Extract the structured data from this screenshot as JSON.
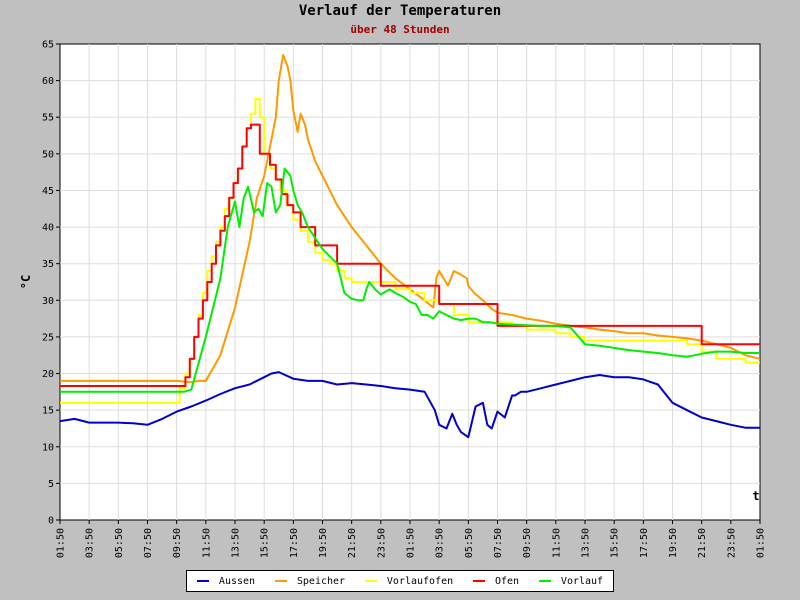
{
  "chart_data": {
    "type": "line",
    "title": "Verlauf der Temperaturen",
    "subtitle": "über 48 Stunden",
    "xlabel": "t",
    "ylabel": "°C",
    "ylim": [
      0,
      65
    ],
    "yticks": [
      0,
      5,
      10,
      15,
      20,
      25,
      30,
      35,
      40,
      45,
      50,
      55,
      60,
      65
    ],
    "xlim": [
      0,
      48
    ],
    "grid": true,
    "legend_position": "bottom",
    "x_tick_labels": [
      "01:50",
      "03:50",
      "05:50",
      "07:50",
      "09:50",
      "11:50",
      "13:50",
      "15:50",
      "17:50",
      "19:50",
      "21:50",
      "23:50",
      "01:50",
      "03:50",
      "05:50",
      "07:50",
      "09:50",
      "11:50",
      "13:50",
      "15:50",
      "17:50",
      "19:50",
      "21:50",
      "23:50",
      "01:50"
    ],
    "series": [
      {
        "name": "Aussen",
        "color": "#0000cc",
        "step": false,
        "x": [
          0,
          1,
          2,
          4,
          5,
          6,
          7,
          8,
          9,
          10,
          11,
          12,
          13,
          14,
          14.5,
          15,
          16,
          17,
          18,
          19,
          20,
          21,
          22,
          23,
          24,
          25,
          25.7,
          26,
          26.5,
          26.9,
          27.2,
          27.5,
          28,
          28.5,
          29,
          29.3,
          29.6,
          30,
          30.5,
          31,
          31.2,
          31.6,
          32,
          33,
          34,
          35,
          36,
          37,
          38,
          39,
          40,
          41,
          42,
          43,
          44,
          45,
          46,
          47,
          48
        ],
        "y": [
          13.5,
          13.8,
          13.3,
          13.3,
          13.2,
          13,
          13.8,
          14.8,
          15.5,
          16.3,
          17.2,
          18,
          18.5,
          19.5,
          20,
          20.2,
          19.3,
          19,
          19,
          18.5,
          18.7,
          18.5,
          18.3,
          18,
          17.8,
          17.5,
          15,
          13,
          12.5,
          14.5,
          13,
          12,
          11.3,
          15.5,
          16,
          13,
          12.5,
          14.8,
          14,
          17,
          17,
          17.5,
          17.5,
          18,
          18.5,
          19,
          19.5,
          19.8,
          19.5,
          19.5,
          19.2,
          18.5,
          16,
          15,
          14,
          13.5,
          13,
          12.6,
          12.6
        ]
      },
      {
        "name": "Speicher",
        "color": "#ff9900",
        "step": false,
        "x": [
          0,
          8,
          9,
          9.5,
          10,
          11,
          12,
          12.5,
          13,
          13.5,
          14,
          14.5,
          14.8,
          15,
          15.3,
          15.6,
          15.8,
          16,
          16.3,
          16.5,
          16.8,
          17,
          17.5,
          18,
          19,
          20,
          21,
          22,
          23,
          24,
          25,
          25.6,
          25.8,
          26,
          26.3,
          26.6,
          27,
          27.5,
          27.9,
          28,
          28.4,
          29,
          29.5,
          30,
          31,
          32,
          33,
          34,
          35,
          36,
          37,
          38,
          39,
          40,
          41,
          42,
          43,
          44,
          45,
          46,
          47,
          48
        ],
        "y": [
          19,
          19,
          18.8,
          19,
          19,
          22.5,
          29,
          33.5,
          38,
          44,
          47,
          52,
          55,
          60,
          63.5,
          62,
          60,
          56,
          53,
          55.5,
          54,
          52,
          49,
          47,
          43,
          40,
          37.5,
          35,
          33,
          31.5,
          30,
          29,
          33,
          34,
          33,
          32,
          34,
          33.5,
          33,
          32,
          31,
          30,
          29,
          28.3,
          28,
          27.5,
          27.2,
          26.8,
          26.5,
          26.3,
          26,
          25.8,
          25.5,
          25.5,
          25.2,
          25,
          24.8,
          24.5,
          24,
          23.5,
          22.5,
          22
        ]
      },
      {
        "name": "Vorlaufofen",
        "color": "#ffff00",
        "step": true,
        "x": [
          0,
          8.2,
          8.6,
          8.9,
          9.2,
          9.5,
          9.8,
          10.1,
          10.4,
          10.7,
          11,
          11.3,
          11.6,
          11.9,
          12.2,
          12.5,
          12.8,
          13.1,
          13.4,
          13.7,
          14,
          14.4,
          14.8,
          15.1,
          15.5,
          16,
          16.5,
          17,
          17.5,
          18,
          18.5,
          19,
          19.5,
          20,
          21,
          22,
          23,
          24,
          25,
          26,
          27,
          28,
          29,
          30,
          31,
          32,
          33,
          34,
          35,
          36,
          37,
          38,
          39,
          40,
          41,
          42,
          43,
          44,
          45,
          46,
          47,
          48
        ],
        "y": [
          16,
          18,
          20,
          22,
          25,
          28,
          31,
          34,
          36,
          38,
          40,
          42.5,
          44,
          46,
          48,
          51,
          53.5,
          55.5,
          57.5,
          55,
          50,
          48,
          46.5,
          45,
          43,
          41,
          39.5,
          38,
          36.5,
          35.5,
          35,
          34,
          33,
          32.5,
          32.5,
          32.5,
          31.5,
          31,
          30,
          29.5,
          28,
          27,
          27,
          27,
          26.5,
          26,
          26,
          25.5,
          25,
          24.5,
          24.5,
          24.5,
          24.5,
          24.5,
          24.5,
          24.5,
          24,
          23,
          22,
          22,
          21.5,
          21.5
        ]
      },
      {
        "name": "Ofen",
        "color": "#ff0000",
        "step": true,
        "x": [
          0,
          8.6,
          8.9,
          9.2,
          9.5,
          9.8,
          10.1,
          10.4,
          10.7,
          11,
          11.3,
          11.6,
          11.9,
          12.2,
          12.5,
          12.8,
          13.1,
          13.4,
          13.7,
          14.4,
          14.8,
          15.2,
          15.6,
          16,
          16.5,
          17,
          17.5,
          18,
          19,
          20,
          21,
          22,
          24,
          25,
          26,
          27,
          28,
          29,
          30,
          31,
          32,
          33,
          34,
          35,
          36,
          37,
          38,
          39,
          40,
          41,
          42,
          43,
          44,
          45,
          46,
          47,
          48
        ],
        "y": [
          18.3,
          19.5,
          22,
          25,
          27.5,
          30,
          32.5,
          35,
          37.5,
          39.5,
          41.5,
          44,
          46,
          48,
          51,
          53.5,
          54,
          54,
          50,
          48.5,
          46.5,
          44.5,
          43,
          42,
          40,
          40,
          37.5,
          37.5,
          35,
          35,
          35,
          32,
          32,
          32,
          29.5,
          29.5,
          29.5,
          29.5,
          26.5,
          26.5,
          26.5,
          26.5,
          26.5,
          26.5,
          26.5,
          26.5,
          26.5,
          26.5,
          26.5,
          26.5,
          26.5,
          26.5,
          24,
          24,
          24,
          24,
          24
        ]
      },
      {
        "name": "Vorlauf",
        "color": "#00ee00",
        "step": false,
        "x": [
          0,
          8,
          8.5,
          9,
          10,
          11,
          11.5,
          12,
          12.3,
          12.6,
          12.9,
          13.3,
          13.6,
          13.9,
          14.2,
          14.5,
          14.8,
          15.1,
          15.4,
          15.6,
          15.8,
          16,
          16.3,
          16.6,
          17,
          17.5,
          18,
          18.5,
          19,
          19.5,
          20,
          20.5,
          20.8,
          21,
          21.2,
          21.6,
          22,
          22.6,
          23,
          23.5,
          24,
          24.4,
          24.8,
          25.2,
          25.6,
          26,
          26.5,
          27,
          27.5,
          28,
          28.5,
          29,
          29.5,
          30,
          31,
          32,
          33,
          34,
          35,
          36,
          37,
          38,
          39,
          40,
          41,
          42,
          43,
          44,
          45,
          46,
          47,
          48
        ],
        "y": [
          17.5,
          17.5,
          17.5,
          17.8,
          25,
          33,
          40,
          43.5,
          40,
          44,
          45.5,
          42,
          42.5,
          41.5,
          46,
          45.5,
          42,
          43,
          48,
          47.5,
          47,
          45,
          43,
          42,
          40,
          38.5,
          37,
          36,
          35,
          31,
          30.2,
          30,
          30,
          31.5,
          32.5,
          31.5,
          30.8,
          31.5,
          31,
          30.5,
          29.8,
          29.5,
          28,
          28,
          27.5,
          28.5,
          28,
          27.5,
          27.3,
          27.5,
          27.5,
          27,
          27,
          26.8,
          26.7,
          26.6,
          26.5,
          26.5,
          26.3,
          24,
          23.8,
          23.5,
          23.2,
          23,
          22.8,
          22.5,
          22.3,
          22.7,
          23,
          23,
          22.8,
          22.8
        ]
      }
    ]
  }
}
